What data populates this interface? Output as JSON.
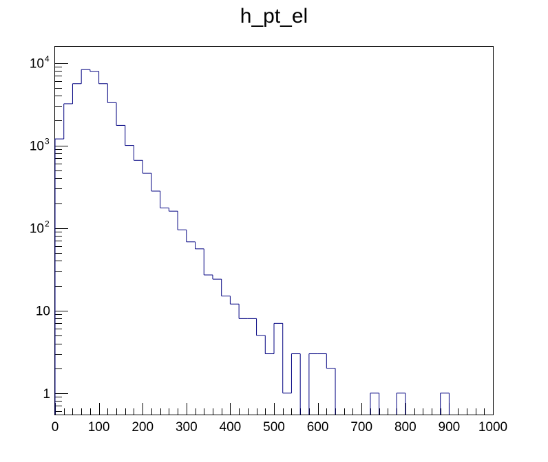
{
  "chart_data": {
    "type": "bar",
    "title": "h_pt_el",
    "xlabel": "",
    "ylabel": "",
    "xlim": [
      0,
      1000
    ],
    "ylim": [
      0.55,
      16000
    ],
    "y_scale": "log",
    "grid": false,
    "legend": "none",
    "line_color": "#000080",
    "bin_width": 20,
    "bin_edges_start": 0,
    "values": [
      1200,
      3200,
      5600,
      8300,
      7900,
      5600,
      3300,
      1750,
      1000,
      660,
      460,
      280,
      175,
      160,
      95,
      68,
      56,
      27,
      24,
      15,
      12,
      8,
      8,
      5,
      3,
      7,
      1,
      3,
      0,
      3,
      3,
      2,
      0,
      0,
      0,
      0,
      1,
      0,
      0,
      1,
      0,
      0,
      0,
      0,
      1,
      0,
      0,
      0,
      0,
      0
    ],
    "x_ticks": [
      "0",
      "100",
      "200",
      "300",
      "400",
      "500",
      "600",
      "700",
      "800",
      "900",
      "1000"
    ],
    "y_ticks": [
      {
        "value": 1,
        "base": "1",
        "exp": ""
      },
      {
        "value": 10,
        "base": "10",
        "exp": ""
      },
      {
        "value": 100,
        "base": "10",
        "exp": "2"
      },
      {
        "value": 1000,
        "base": "10",
        "exp": "3"
      },
      {
        "value": 10000,
        "base": "10",
        "exp": "4"
      }
    ]
  }
}
